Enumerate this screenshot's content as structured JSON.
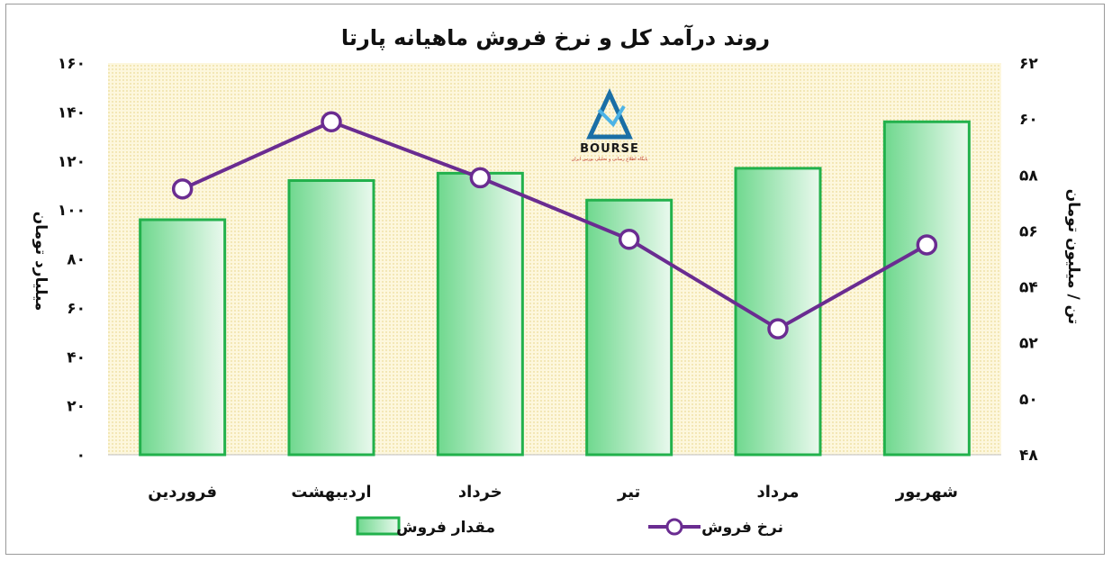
{
  "chart_data": {
    "type": "bar+line",
    "title": "روند درآمد کل و نرخ فروش ماهیانه پارتا",
    "categories": [
      "فروردین",
      "اردیبهشت",
      "خرداد",
      "تیر",
      "مرداد",
      "شهریور"
    ],
    "series": [
      {
        "name": "مقدار فروش",
        "type": "bar",
        "axis": "left",
        "values": [
          96,
          112,
          115,
          104,
          117,
          136
        ],
        "color": "#22b14c"
      },
      {
        "name": "نرخ فروش",
        "type": "line",
        "axis": "right",
        "values": [
          57.5,
          59.9,
          57.9,
          55.7,
          52.5,
          55.5
        ],
        "color": "#6a2c91"
      }
    ],
    "ylabel_left": "میلیارد تومان",
    "ylabel_right": "تن / میلیون تومان",
    "ylim_left": [
      0,
      160
    ],
    "ylim_right": [
      48,
      62
    ],
    "yticks_left": [
      "۰",
      "۲۰",
      "۴۰",
      "۶۰",
      "۸۰",
      "۱۰۰",
      "۱۲۰",
      "۱۴۰",
      "۱۶۰"
    ],
    "yticks_right": [
      "۴۸",
      "۵۰",
      "۵۲",
      "۵۴",
      "۵۶",
      "۵۸",
      "۶۰",
      "۶۲"
    ],
    "legend_position": "bottom",
    "plot_background": "#fdf6d8"
  },
  "logo": {
    "text": "BOURSE",
    "subtext": "پایگاه اطلاع رسانی و تحلیلی بورس ایران",
    "color": "#1a6fa6"
  }
}
